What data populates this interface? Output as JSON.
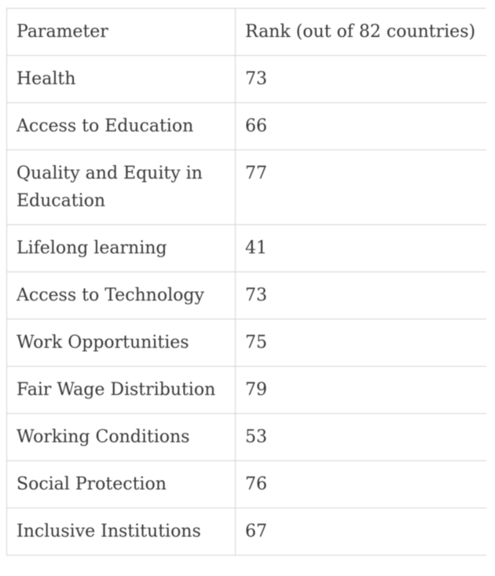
{
  "table": {
    "columns": {
      "parameter": "Parameter",
      "rank": "Rank (out of 82 countries)"
    },
    "rows": [
      {
        "parameter": "Health",
        "rank": "73"
      },
      {
        "parameter": "Access to Education",
        "rank": "66"
      },
      {
        "parameter": "Quality and Equity in Education",
        "rank": "77"
      },
      {
        "parameter": "Lifelong learning",
        "rank": "41"
      },
      {
        "parameter": "Access to Technology",
        "rank": "73"
      },
      {
        "parameter": "Work Opportunities",
        "rank": "75"
      },
      {
        "parameter": "Fair Wage Distribution",
        "rank": "79"
      },
      {
        "parameter": "Working Conditions",
        "rank": "53"
      },
      {
        "parameter": "Social Protection",
        "rank": "76"
      },
      {
        "parameter": "Inclusive Institutions",
        "rank": "67"
      }
    ],
    "colors": {
      "border": "#d5d5d5",
      "text": "#383838",
      "background": "#ffffff"
    }
  }
}
